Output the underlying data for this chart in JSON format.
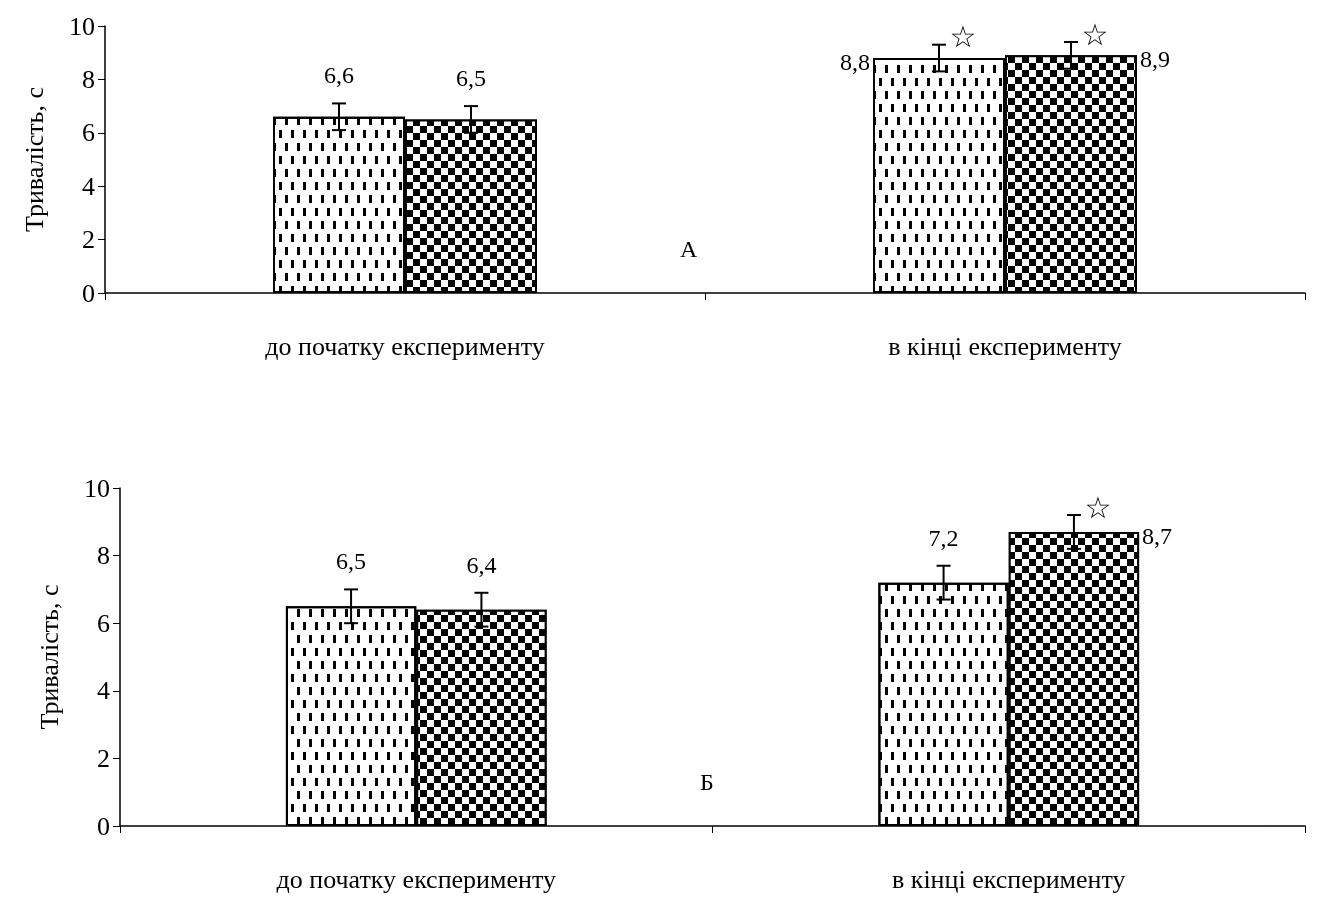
{
  "chart_data": [
    {
      "type": "bar",
      "ylabel": "Тривалість, с",
      "categories": [
        "до початку експерименту",
        "в кінці експерименту"
      ],
      "series": [
        {
          "color": "#ffffff",
          "values": [
            6.6,
            8.8
          ],
          "errors": [
            0.5,
            0.5
          ],
          "value_labels": [
            "6,6",
            "8,8"
          ]
        },
        {
          "color": "#000000",
          "values": [
            6.5,
            8.9
          ],
          "errors": [
            0.5,
            0.5
          ],
          "value_labels": [
            "6,5",
            "8,9"
          ]
        }
      ],
      "ylim": [
        0,
        10
      ],
      "yticks": [
        0,
        2,
        4,
        6,
        8,
        10
      ],
      "grid": false,
      "annotations": [
        "А",
        {
          "text": "☆",
          "x": "в кінці експерименту",
          "y": 8.8
        },
        {
          "text": "☆",
          "x": "в кінці експерименту",
          "y": 8.9
        }
      ]
    },
    {
      "type": "bar",
      "ylabel": "Тривалість, с",
      "categories": [
        "до початку експерименту",
        "в кінці експерименту"
      ],
      "series": [
        {
          "color": "#ffffff",
          "values": [
            6.5,
            7.2
          ],
          "errors": [
            0.5,
            0.5
          ],
          "value_labels": [
            "6,5",
            "7,2"
          ]
        },
        {
          "color": "#000000",
          "values": [
            6.4,
            8.7
          ],
          "errors": [
            0.5,
            0.5
          ],
          "value_labels": [
            "6,4",
            "8,7"
          ]
        }
      ],
      "ylim": [
        0,
        10
      ],
      "yticks": [
        0,
        2,
        4,
        6,
        8,
        10
      ],
      "grid": false,
      "annotations": [
        "Б",
        {
          "text": "☆",
          "x": "в кінці експерименту",
          "y": 8.7
        }
      ]
    }
  ]
}
